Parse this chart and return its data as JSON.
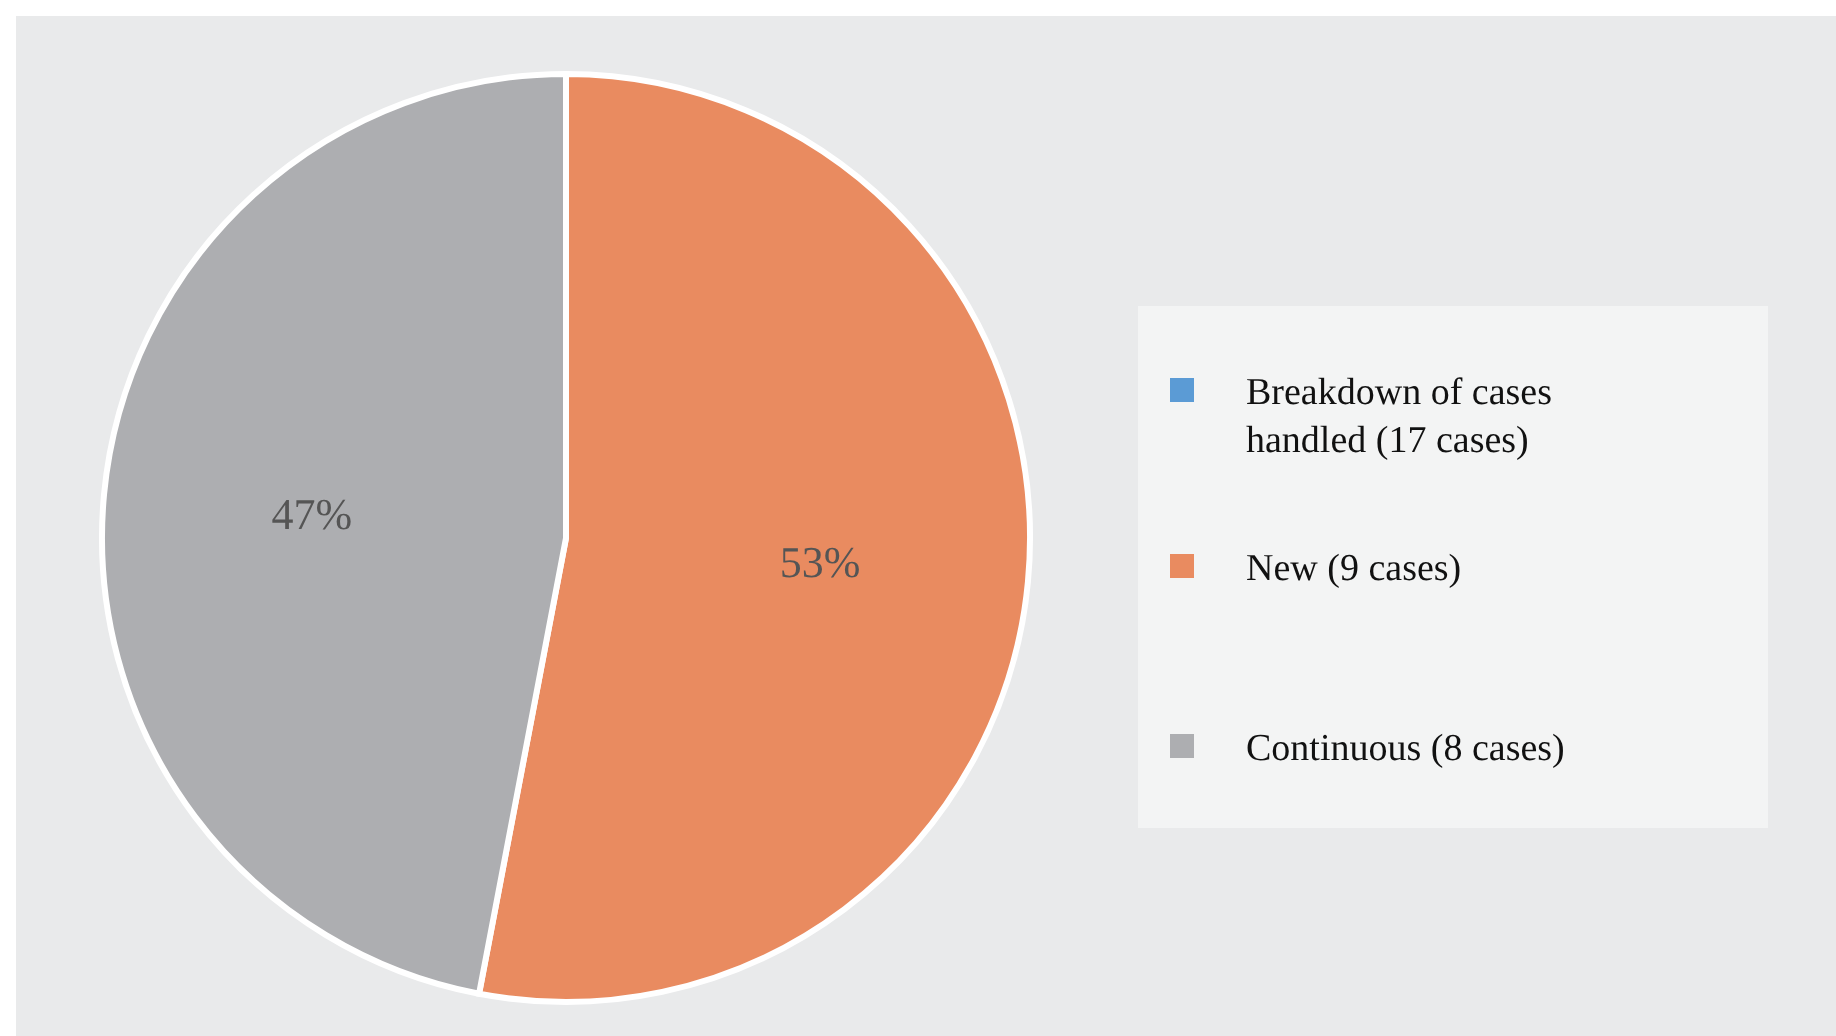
{
  "chart_data": {
    "type": "pie",
    "categories": [
      "Breakdown of cases handled (17 cases)",
      "New (9 cases)",
      "Continuous (8 cases)"
    ],
    "values": [
      0,
      53,
      47
    ],
    "colors": [
      "#5b9bd5",
      "#e98b60",
      "#adaeb1"
    ],
    "value_labels": [
      null,
      "53%",
      "47%"
    ],
    "legend": "right"
  }
}
